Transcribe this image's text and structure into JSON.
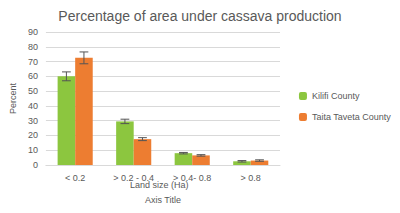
{
  "chart_data": {
    "type": "bar",
    "title": "Percentage of area under cassava production",
    "y_label": "Percent",
    "x_label": "Axis Title",
    "annotations": [
      "Land size (Ha)"
    ],
    "categories": [
      "< 0.2",
      "> 0.2 - 0.4",
      "> 0.4- 0.8",
      "> 0.8"
    ],
    "series": [
      {
        "name": "Kilifi County",
        "color": "#8cc63f",
        "values": [
          60,
          29.5,
          8,
          2.5
        ],
        "errors": [
          3,
          1.5,
          0.5,
          0.5
        ]
      },
      {
        "name": "Taita Taveta County",
        "color": "#ed7d31",
        "values": [
          72.5,
          17.5,
          6.5,
          3
        ],
        "errors": [
          4,
          1,
          0.5,
          0.5
        ]
      }
    ],
    "ylim": [
      0,
      90
    ],
    "yticks": [
      0,
      10,
      20,
      30,
      40,
      50,
      60,
      70,
      80,
      90
    ],
    "grid": true,
    "legend": "right"
  }
}
